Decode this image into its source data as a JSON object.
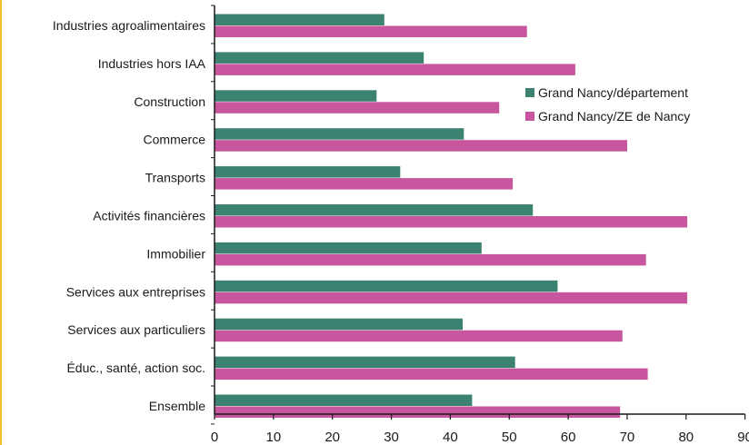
{
  "colors": {
    "series_1": "#3b8270",
    "series_2": "#c8569e",
    "left_rule": "#f2c230",
    "axis": "#1a1a1a"
  },
  "chart_data": {
    "type": "bar",
    "orientation": "horizontal",
    "title": "",
    "xlabel": "",
    "ylabel": "",
    "xlim": [
      0,
      90
    ],
    "x_ticks": [
      0,
      10,
      20,
      30,
      40,
      50,
      60,
      70,
      80,
      90
    ],
    "grid": false,
    "legend_position": "right, upper middle",
    "categories": [
      "Industries agroalimentaires",
      "Industries hors IAA",
      "Construction",
      "Commerce",
      "Transports",
      "Activités financières",
      "Immobilier",
      "Services aux entreprises",
      "Services aux particuliers",
      "Éduc., santé, action soc.",
      "Ensemble"
    ],
    "series": [
      {
        "name": "Grand Nancy/département",
        "values": [
          28.8,
          35.5,
          27.5,
          42.3,
          31.5,
          54.0,
          45.3,
          58.2,
          42.1,
          51.0,
          43.7
        ]
      },
      {
        "name": "Grand Nancy/ZE de Nancy",
        "values": [
          53.0,
          61.2,
          48.3,
          70.0,
          50.6,
          80.2,
          73.2,
          80.2,
          69.2,
          73.5,
          68.8
        ]
      }
    ]
  }
}
